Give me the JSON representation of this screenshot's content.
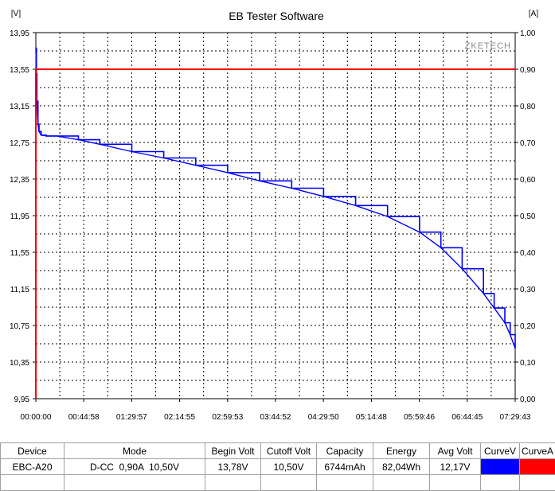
{
  "window_title": "EB Tester Software",
  "watermark": "ZKETECH",
  "chart_data": {
    "type": "line",
    "title": "EB Tester Software",
    "y_left_unit": "[V]",
    "y_right_unit": "[A]",
    "ylim_left": [
      9.95,
      13.95
    ],
    "ylim_right": [
      0.0,
      1.0
    ],
    "y_left_ticks": [
      "13,95",
      "13,55",
      "13,15",
      "12,75",
      "12,35",
      "11,95",
      "11,55",
      "11,15",
      "10,75",
      "10,35",
      "9,95"
    ],
    "y_right_ticks": [
      "1,00",
      "0,90",
      "0,80",
      "0,70",
      "0,60",
      "0,50",
      "0,40",
      "0,30",
      "0,20",
      "0,10",
      "0,00"
    ],
    "x_ticks": [
      "00:00:00",
      "00:44:58",
      "01:29:57",
      "02:14:55",
      "02:59:53",
      "03:44:52",
      "04:29:50",
      "05:14:48",
      "05:59:46",
      "06:44:45",
      "07:29:43"
    ],
    "grid": true,
    "series": [
      {
        "name": "CurveV",
        "axis": "left",
        "color": "#0000ff",
        "x_minutes": [
          0,
          0.5,
          1,
          2,
          3,
          5,
          10,
          20,
          40,
          60,
          90,
          120,
          150,
          180,
          210,
          240,
          270,
          300,
          330,
          360,
          380,
          400,
          420,
          430,
          440,
          445,
          449.7
        ],
        "y": [
          13.78,
          13.5,
          13.2,
          12.95,
          12.87,
          12.83,
          12.82,
          12.82,
          12.78,
          12.73,
          12.65,
          12.58,
          12.5,
          12.42,
          12.33,
          12.25,
          12.16,
          12.06,
          11.94,
          11.77,
          11.6,
          11.37,
          11.1,
          10.94,
          10.78,
          10.65,
          10.5
        ]
      },
      {
        "name": "CurveA",
        "axis": "right",
        "color": "#ff0000",
        "x_minutes": [
          0,
          449.7
        ],
        "y": [
          0.9,
          0.9
        ]
      }
    ]
  },
  "table": {
    "headers": [
      "Device",
      "Mode",
      "Begin Volt",
      "Cutoff Volt",
      "Capacity",
      "Energy",
      "Avg Volt",
      "CurveV",
      "CurveA"
    ],
    "row": [
      "EBC-A20",
      "D-CC  0,90A  10,50V",
      "13,78V",
      "10,50V",
      "6744mAh",
      "82,04Wh",
      "12,17V"
    ],
    "curve_colors": [
      "#0000ff",
      "#ff0000"
    ]
  }
}
